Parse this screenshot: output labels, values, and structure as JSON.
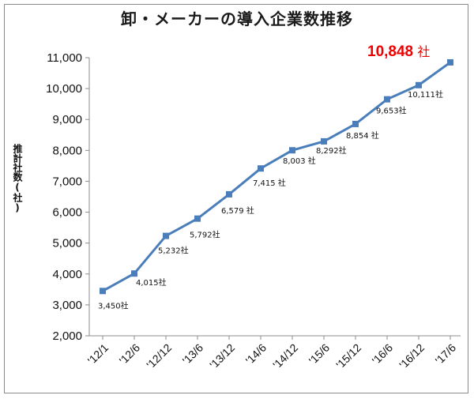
{
  "chart_data": {
    "type": "line",
    "title": "卸・メーカーの導入企業数推移",
    "ylabel": "推計社数(社)",
    "xlabel": "",
    "categories": [
      "'12/1",
      "'12/6",
      "'12/12",
      "'13/6",
      "'13/12",
      "'14/6",
      "'14/12",
      "'15/6",
      "'15/12",
      "'16/6",
      "'16/12",
      "'17/6"
    ],
    "values": [
      3450,
      4015,
      5232,
      5792,
      6579,
      7415,
      8003,
      8292,
      8854,
      9653,
      10111,
      10848
    ],
    "data_labels": [
      "3,450社",
      "4,015社",
      "5,232社",
      "5,792社",
      "6,579 社",
      "7,415 社",
      "8,003 社",
      "8,292社",
      "8,854 社",
      "9,653社",
      "10,111社",
      ""
    ],
    "highlight": {
      "value": "10,848",
      "unit": "社",
      "color": "#ee0000"
    },
    "ylim": [
      2000,
      11000
    ],
    "yticks": [
      "2,000",
      "3,000",
      "4,000",
      "5,000",
      "6,000",
      "7,000",
      "8,000",
      "9,000",
      "10,000",
      "11,000"
    ],
    "grid": false,
    "line_color": "#4a7ebb",
    "marker_color": "#4a7ebb"
  }
}
